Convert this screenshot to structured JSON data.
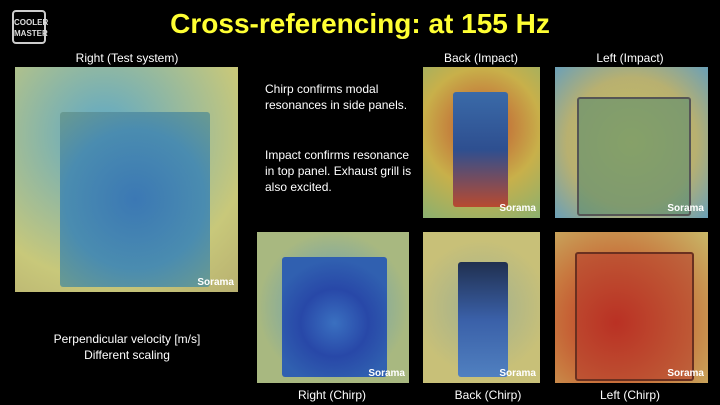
{
  "header": {
    "logo": [
      "COOLER",
      "MASTER"
    ],
    "title": "Cross-referencing: at 155 Hz"
  },
  "panels": [
    {
      "caption": "Right (Test system)",
      "watermark": "Sorama"
    },
    {
      "caption": "Back (Impact)",
      "watermark": "Sorama"
    },
    {
      "caption": "Left (Impact)",
      "watermark": "Sorama"
    },
    {
      "caption": "Right (Chirp)",
      "watermark": "Sorama"
    },
    {
      "caption": "Back (Chirp)",
      "watermark": "Sorama"
    },
    {
      "caption": "Left (Chirp)",
      "watermark": "Sorama"
    }
  ],
  "notes": [
    "Chirp confirms modal resonances in side panels.",
    "Impact confirms resonance in top panel. Exhaust grill is also excited."
  ],
  "legend": [
    "Perpendicular velocity [m/s]",
    "Different scaling"
  ]
}
